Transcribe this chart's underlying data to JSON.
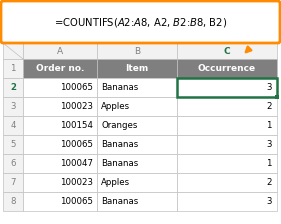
{
  "formula_text": "=COUNTIFS($A$2:$A$8, A2, $B$2:$B$8, B2)",
  "formula_box_color": "#FF8C00",
  "formula_bg_color": "#FFFFFF",
  "formula_text_color": "#000000",
  "col_letters": [
    "",
    "A",
    "B",
    "C"
  ],
  "col_header_bg": "#F2F2F2",
  "col_header_text_color": "#808080",
  "col_C_header_text_color": "#217346",
  "row_number_bg": "#F2F2F2",
  "row_number_text_color": "#808080",
  "row2_number_text_color": "#217346",
  "header_row": [
    "Order no.",
    "Item",
    "Occurrence"
  ],
  "header_bg": "#7F7F7F",
  "header_text_color": "#FFFFFF",
  "data_rows": [
    [
      100065,
      "Bananas",
      3
    ],
    [
      100023,
      "Apples",
      2
    ],
    [
      100154,
      "Oranges",
      1
    ],
    [
      100065,
      "Bananas",
      3
    ],
    [
      100047,
      "Bananas",
      1
    ],
    [
      100023,
      "Apples",
      2
    ],
    [
      100065,
      "Bananas",
      3
    ]
  ],
  "selected_cell_border_color": "#217346",
  "arrow_color": "#FF8C00",
  "grid_color": "#C0C0C0",
  "cell_bg": "#FFFFFF"
}
